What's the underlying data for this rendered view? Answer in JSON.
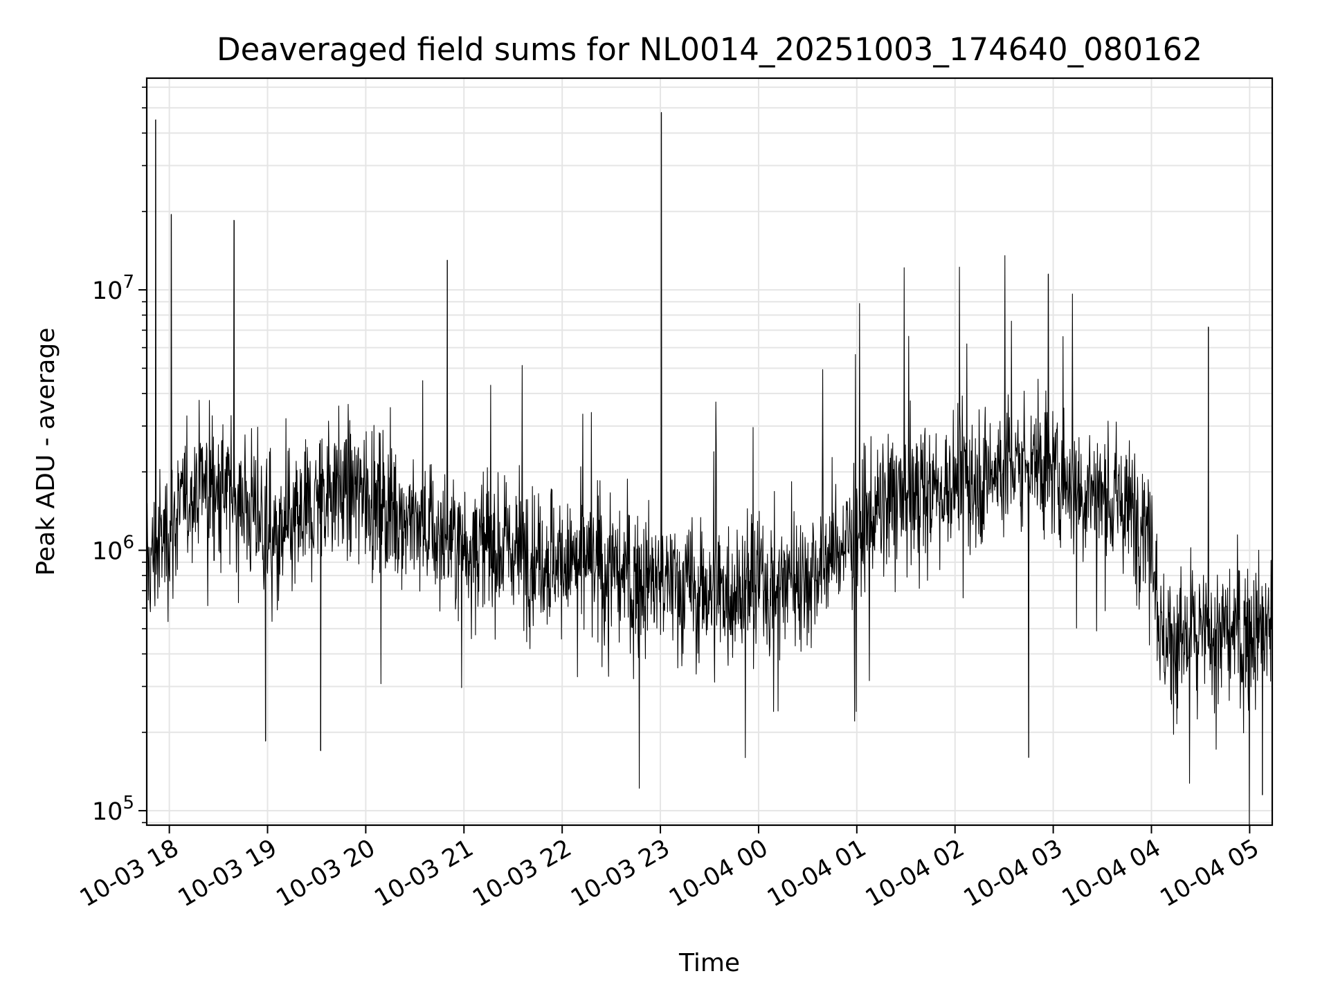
{
  "chart_data": {
    "type": "line",
    "title": "Deaveraged field sums for NL0014_20251003_174640_080162",
    "xlabel": "Time",
    "ylabel": "Peak ADU - average",
    "yscale": "log",
    "ylim": [
      88000,
      65000000
    ],
    "xlim_hours": [
      -0.23,
      11.23
    ],
    "x_reference": "10-03 18:00",
    "grid": true,
    "line_color": "#000000",
    "grid_color": "#e5e5e5",
    "x_ticks": [
      {
        "hour": 0,
        "label": "10-03 18"
      },
      {
        "hour": 1,
        "label": "10-03 19"
      },
      {
        "hour": 2,
        "label": "10-03 20"
      },
      {
        "hour": 3,
        "label": "10-03 21"
      },
      {
        "hour": 4,
        "label": "10-03 22"
      },
      {
        "hour": 5,
        "label": "10-03 23"
      },
      {
        "hour": 6,
        "label": "10-04 00"
      },
      {
        "hour": 7,
        "label": "10-04 01"
      },
      {
        "hour": 8,
        "label": "10-04 02"
      },
      {
        "hour": 9,
        "label": "10-04 03"
      },
      {
        "hour": 10,
        "label": "10-04 04"
      },
      {
        "hour": 11,
        "label": "10-04 05"
      }
    ],
    "y_ticks": [
      {
        "value": 100000,
        "base": "10",
        "exponent": "5"
      },
      {
        "value": 1000000,
        "base": "10",
        "exponent": "6"
      },
      {
        "value": 10000000,
        "base": "10",
        "exponent": "7"
      }
    ],
    "series": [
      {
        "name": "Peak ADU - average",
        "sample_count": 2750,
        "baseline_trend": [
          {
            "hour": -0.23,
            "median": 850000
          },
          {
            "hour": 0.3,
            "median": 1900000
          },
          {
            "hour": 0.8,
            "median": 1500000
          },
          {
            "hour": 1.1,
            "median": 1000000
          },
          {
            "hour": 1.6,
            "median": 1800000
          },
          {
            "hour": 2.1,
            "median": 1600000
          },
          {
            "hour": 2.8,
            "median": 1100000
          },
          {
            "hour": 3.6,
            "median": 1000000
          },
          {
            "hour": 4.6,
            "median": 800000
          },
          {
            "hour": 5.5,
            "median": 700000
          },
          {
            "hour": 6.5,
            "median": 800000
          },
          {
            "hour": 7.3,
            "median": 1500000
          },
          {
            "hour": 8.0,
            "median": 1800000
          },
          {
            "hour": 8.8,
            "median": 2200000
          },
          {
            "hour": 9.5,
            "median": 1600000
          },
          {
            "hour": 10.0,
            "median": 1300000
          },
          {
            "hour": 10.1,
            "median": 450000
          },
          {
            "hour": 11.23,
            "median": 500000
          }
        ],
        "scatter_decades": 0.35,
        "notable_spikes": [
          {
            "hour": -0.14,
            "value": 45000000
          },
          {
            "hour": 0.02,
            "value": 19500000
          },
          {
            "hour": 0.66,
            "value": 18500000
          },
          {
            "hour": 2.83,
            "value": 13000000
          },
          {
            "hour": 5.01,
            "value": 48000000
          },
          {
            "hour": 8.95,
            "value": 11500000
          },
          {
            "hour": 10.58,
            "value": 7200000
          }
        ],
        "notable_dips": [
          {
            "hour": 0.98,
            "value": 185000
          },
          {
            "hour": 1.54,
            "value": 170000
          },
          {
            "hour": 8.75,
            "value": 160000
          },
          {
            "hour": 11.13,
            "value": 115000
          }
        ]
      }
    ]
  }
}
